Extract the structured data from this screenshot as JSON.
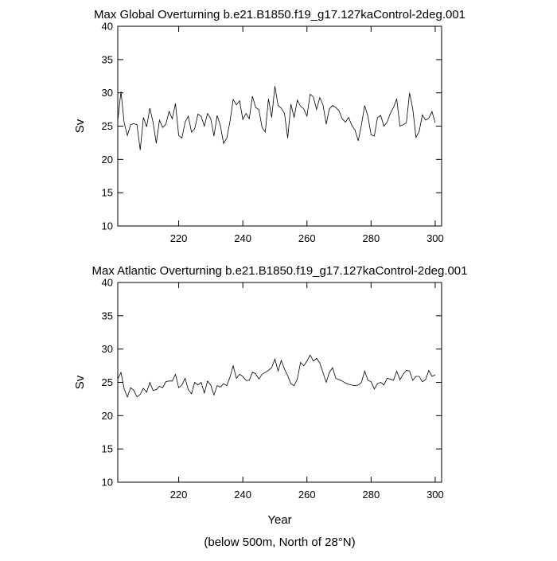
{
  "chart_data": [
    {
      "type": "line",
      "title": "Max Global Overturning b.e21.B1850.f19_g17.127kaControl-2deg.001",
      "y_label": "Sv",
      "x": [
        201,
        202,
        203,
        204,
        205,
        206,
        207,
        208,
        209,
        210,
        211,
        212,
        213,
        214,
        215,
        216,
        217,
        218,
        219,
        220,
        221,
        222,
        223,
        224,
        225,
        226,
        227,
        228,
        229,
        230,
        231,
        232,
        233,
        234,
        235,
        236,
        237,
        238,
        239,
        240,
        241,
        242,
        243,
        244,
        245,
        246,
        247,
        248,
        249,
        250,
        251,
        252,
        253,
        254,
        255,
        256,
        257,
        258,
        259,
        260,
        261,
        262,
        263,
        264,
        265,
        266,
        267,
        268,
        269,
        270,
        271,
        272,
        273,
        274,
        275,
        276,
        277,
        278,
        279,
        280,
        281,
        282,
        283,
        284,
        285,
        286,
        287,
        288,
        289,
        290,
        291,
        292,
        293,
        294,
        295,
        296,
        297,
        298,
        299,
        300
      ],
      "values": [
        25.8,
        30.2,
        25.5,
        23.6,
        25.2,
        25.4,
        25.2,
        21.4,
        26.3,
        24.9,
        27.7,
        25.6,
        22.4,
        25.9,
        24.8,
        25.3,
        27.2,
        26.1,
        28.4,
        23.6,
        23.2,
        25.6,
        26.5,
        24.1,
        24.6,
        26.8,
        26.5,
        25.0,
        26.9,
        26.1,
        23.5,
        26.6,
        25.1,
        22.4,
        23.2,
        25.7,
        29.0,
        28.2,
        28.8,
        26.0,
        26.9,
        26.1,
        29.5,
        27.8,
        27.5,
        24.8,
        24.1,
        29.1,
        26.3,
        31.0,
        28.1,
        27.7,
        26.9,
        23.2,
        28.3,
        26.3,
        28.9,
        28.0,
        27.6,
        26.5,
        29.8,
        29.4,
        27.5,
        29.3,
        28.2,
        25.3,
        27.6,
        28.1,
        27.8,
        27.3,
        26.1,
        25.6,
        26.3,
        25.1,
        24.4,
        22.8,
        25.2,
        28.1,
        26.5,
        23.7,
        23.5,
        26.3,
        26.6,
        25.0,
        25.6,
        26.9,
        27.8,
        29.1,
        25.0,
        25.2,
        25.5,
        30.0,
        27.6,
        23.3,
        24.2,
        26.7,
        25.9,
        26.2,
        27.2,
        25.5
      ],
      "color": "#000000",
      "xlim": [
        201,
        302
      ],
      "ylim": [
        10,
        40
      ],
      "xticks": [
        220,
        240,
        260,
        280,
        300
      ],
      "yticks": [
        10,
        15,
        20,
        25,
        30,
        35,
        40
      ]
    },
    {
      "type": "line",
      "title": "Max Atlantic Overturning b.e21.B1850.f19_g17.127kaControl-2deg.001",
      "y_label": "Sv",
      "x_label": "Year",
      "note": "(below 500m, North of 28°N)",
      "x": [
        201,
        202,
        203,
        204,
        205,
        206,
        207,
        208,
        209,
        210,
        211,
        212,
        213,
        214,
        215,
        216,
        217,
        218,
        219,
        220,
        221,
        222,
        223,
        224,
        225,
        226,
        227,
        228,
        229,
        230,
        231,
        232,
        233,
        234,
        235,
        236,
        237,
        238,
        239,
        240,
        241,
        242,
        243,
        244,
        245,
        246,
        247,
        248,
        249,
        250,
        251,
        252,
        253,
        254,
        255,
        256,
        257,
        258,
        259,
        260,
        261,
        262,
        263,
        264,
        265,
        266,
        267,
        268,
        269,
        270,
        271,
        272,
        273,
        274,
        275,
        276,
        277,
        278,
        279,
        280,
        281,
        282,
        283,
        284,
        285,
        286,
        287,
        288,
        289,
        290,
        291,
        292,
        293,
        294,
        295,
        296,
        297,
        298,
        299,
        300
      ],
      "values": [
        25.5,
        26.5,
        24.0,
        22.8,
        24.2,
        23.8,
        22.8,
        23.2,
        24.1,
        23.5,
        25.0,
        23.8,
        23.9,
        24.4,
        24.2,
        25.1,
        25.2,
        25.2,
        26.2,
        24.2,
        24.6,
        25.6,
        23.9,
        23.3,
        25.0,
        24.6,
        25.0,
        23.4,
        25.2,
        24.6,
        23.1,
        24.5,
        24.3,
        24.8,
        24.5,
        25.8,
        27.5,
        25.6,
        26.2,
        25.9,
        25.3,
        25.3,
        26.5,
        26.3,
        25.5,
        26.2,
        26.5,
        26.8,
        27.2,
        28.5,
        26.7,
        28.3,
        27.0,
        26.0,
        24.8,
        24.5,
        25.5,
        28.0,
        27.5,
        28.2,
        29.1,
        28.2,
        28.6,
        27.9,
        26.5,
        25.0,
        26.5,
        27.2,
        25.6,
        25.4,
        25.2,
        24.9,
        24.7,
        24.6,
        24.5,
        24.6,
        25.0,
        26.7,
        25.3,
        25.1,
        24.0,
        24.8,
        25.0,
        24.6,
        25.6,
        25.5,
        25.3,
        26.7,
        25.4,
        26.2,
        26.8,
        26.7,
        25.3,
        25.9,
        25.9,
        25.1,
        25.4,
        26.8,
        25.9,
        26.1
      ],
      "color": "#000000",
      "xlim": [
        201,
        302
      ],
      "ylim": [
        10,
        40
      ],
      "xticks": [
        220,
        240,
        260,
        280,
        300
      ],
      "yticks": [
        10,
        15,
        20,
        25,
        30,
        35,
        40
      ]
    }
  ]
}
